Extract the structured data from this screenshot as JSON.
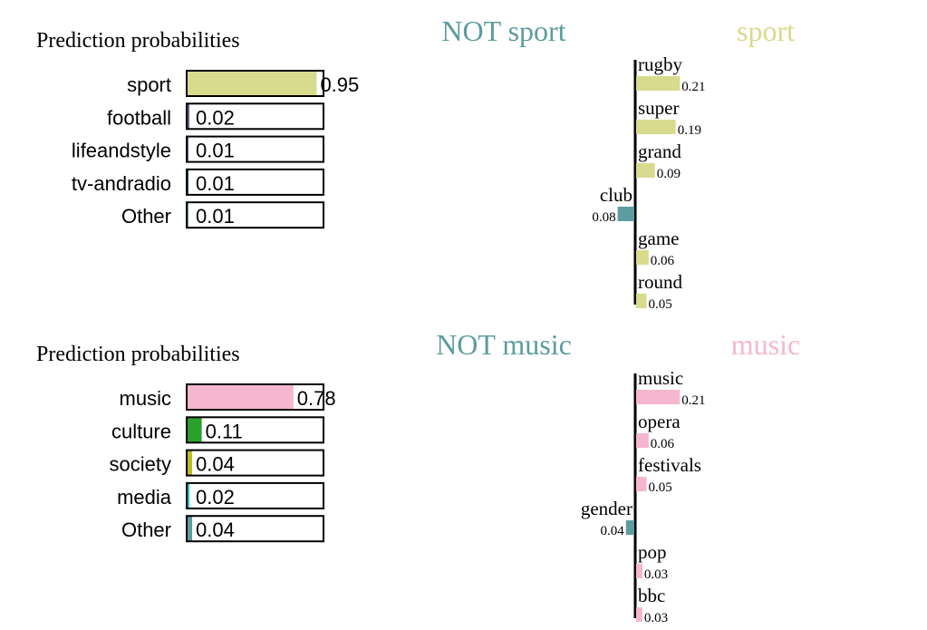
{
  "panels": [
    {
      "prob_title": "Prediction probabilities",
      "neg_label": "NOT sport",
      "pos_label": "sport",
      "pos_color": "#d8da8d",
      "neg_color": "#5d9c9f"
    },
    {
      "prob_title": "Prediction probabilities",
      "neg_label": "NOT music",
      "pos_label": "music",
      "pos_color": "#f5b6d0",
      "neg_color": "#5d9c9f"
    }
  ],
  "chart_data": [
    {
      "type": "bar",
      "orientation": "horizontal",
      "title": "Prediction probabilities",
      "categories": [
        "sport",
        "football",
        "lifeandstyle",
        "tv-andradio",
        "Other"
      ],
      "values": [
        0.95,
        0.02,
        0.01,
        0.01,
        0.01
      ],
      "value_labels": [
        "0.95",
        "0.02",
        "0.01",
        "0.01",
        "0.01"
      ],
      "colors": [
        "#d8da8d",
        "#6b5b95",
        "#6b5b95",
        "#1f4e5f",
        "#5d9c9f"
      ],
      "xlim": [
        0,
        1
      ]
    },
    {
      "type": "bar",
      "orientation": "horizontal",
      "categories": [
        "rugby",
        "super",
        "grand",
        "club",
        "game",
        "round"
      ],
      "values": [
        0.21,
        0.19,
        0.09,
        -0.08,
        0.06,
        0.05
      ],
      "value_labels": [
        "0.21",
        "0.19",
        "0.09",
        "0.08",
        "0.06",
        "0.05"
      ],
      "legend": [
        "NOT sport",
        "sport"
      ]
    },
    {
      "type": "bar",
      "orientation": "horizontal",
      "title": "Prediction probabilities",
      "categories": [
        "music",
        "culture",
        "society",
        "media",
        "Other"
      ],
      "values": [
        0.78,
        0.11,
        0.04,
        0.02,
        0.04
      ],
      "value_labels": [
        "0.78",
        "0.11",
        "0.04",
        "0.02",
        "0.04"
      ],
      "colors": [
        "#f5b6d0",
        "#2ca02c",
        "#bcbd22",
        "#17becf",
        "#5d9c9f"
      ],
      "xlim": [
        0,
        1
      ]
    },
    {
      "type": "bar",
      "orientation": "horizontal",
      "categories": [
        "music",
        "opera",
        "festivals",
        "gender",
        "pop",
        "bbc"
      ],
      "values": [
        0.21,
        0.06,
        0.05,
        -0.04,
        0.03,
        0.03
      ],
      "value_labels": [
        "0.21",
        "0.06",
        "0.05",
        "0.04",
        "0.03",
        "0.03"
      ],
      "legend": [
        "NOT music",
        "music"
      ]
    }
  ]
}
